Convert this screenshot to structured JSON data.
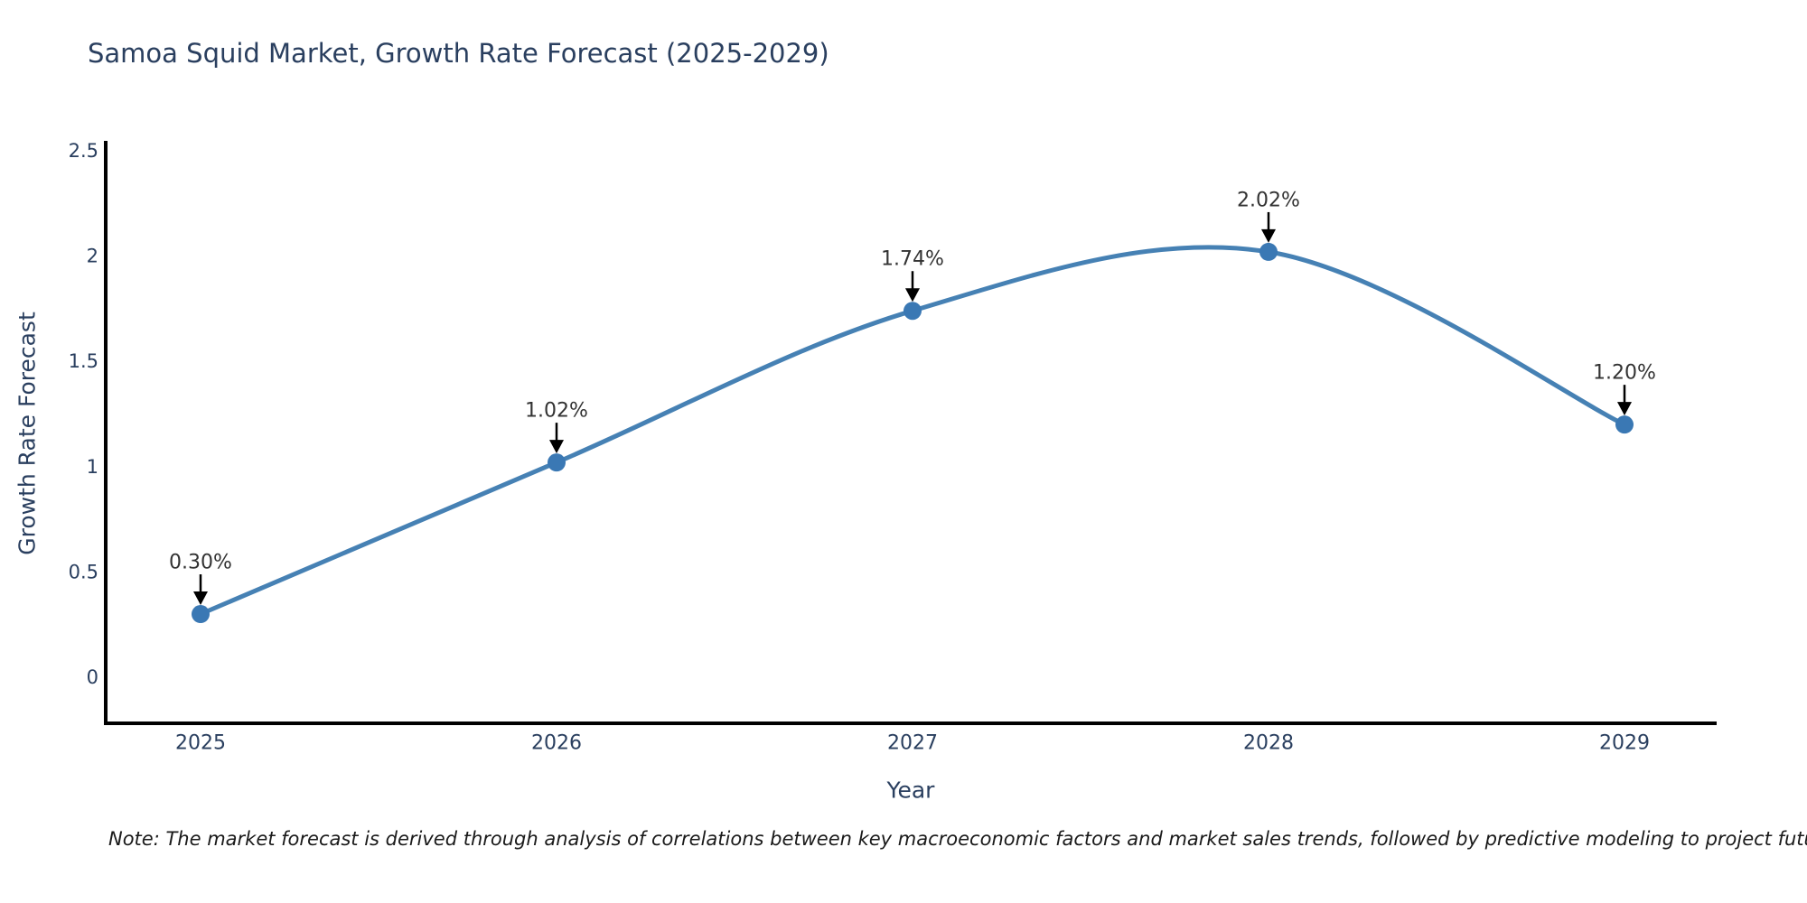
{
  "title": "Samoa Squid Market, Growth Rate Forecast (2025-2029)",
  "note": "Note: The market forecast is derived through analysis of correlations between key macroeconomic factors and market sales trends, followed by predictive modeling to project future sales",
  "chart_data": {
    "type": "line",
    "line_shape": "spline",
    "categories": [
      "2025",
      "2026",
      "2027",
      "2028",
      "2029"
    ],
    "values": [
      0.3,
      1.02,
      1.74,
      2.02,
      1.2
    ],
    "point_labels": [
      "0.30%",
      "1.02%",
      "1.74%",
      "2.02%",
      "1.20%"
    ],
    "title": "Samoa Squid Market, Growth Rate Forecast (2025-2029)",
    "xlabel": "Year",
    "ylabel": "Growth Rate Forecast",
    "ylim": [
      0,
      2.5
    ],
    "ytick_values": [
      0,
      0.5,
      1,
      1.5,
      2,
      2.5
    ],
    "ytick_labels": [
      "0",
      "0.5",
      "1",
      "1.5",
      "2",
      "2.5"
    ],
    "grid": false,
    "legend": "none",
    "colors": {
      "line": "#4681b4",
      "marker": "#3a78b4",
      "axis": "#000000",
      "arrow": "#000000",
      "title_text": "#2a3f5f",
      "tick_text": "#2a3f5f",
      "annotation_text": "#333333"
    }
  }
}
